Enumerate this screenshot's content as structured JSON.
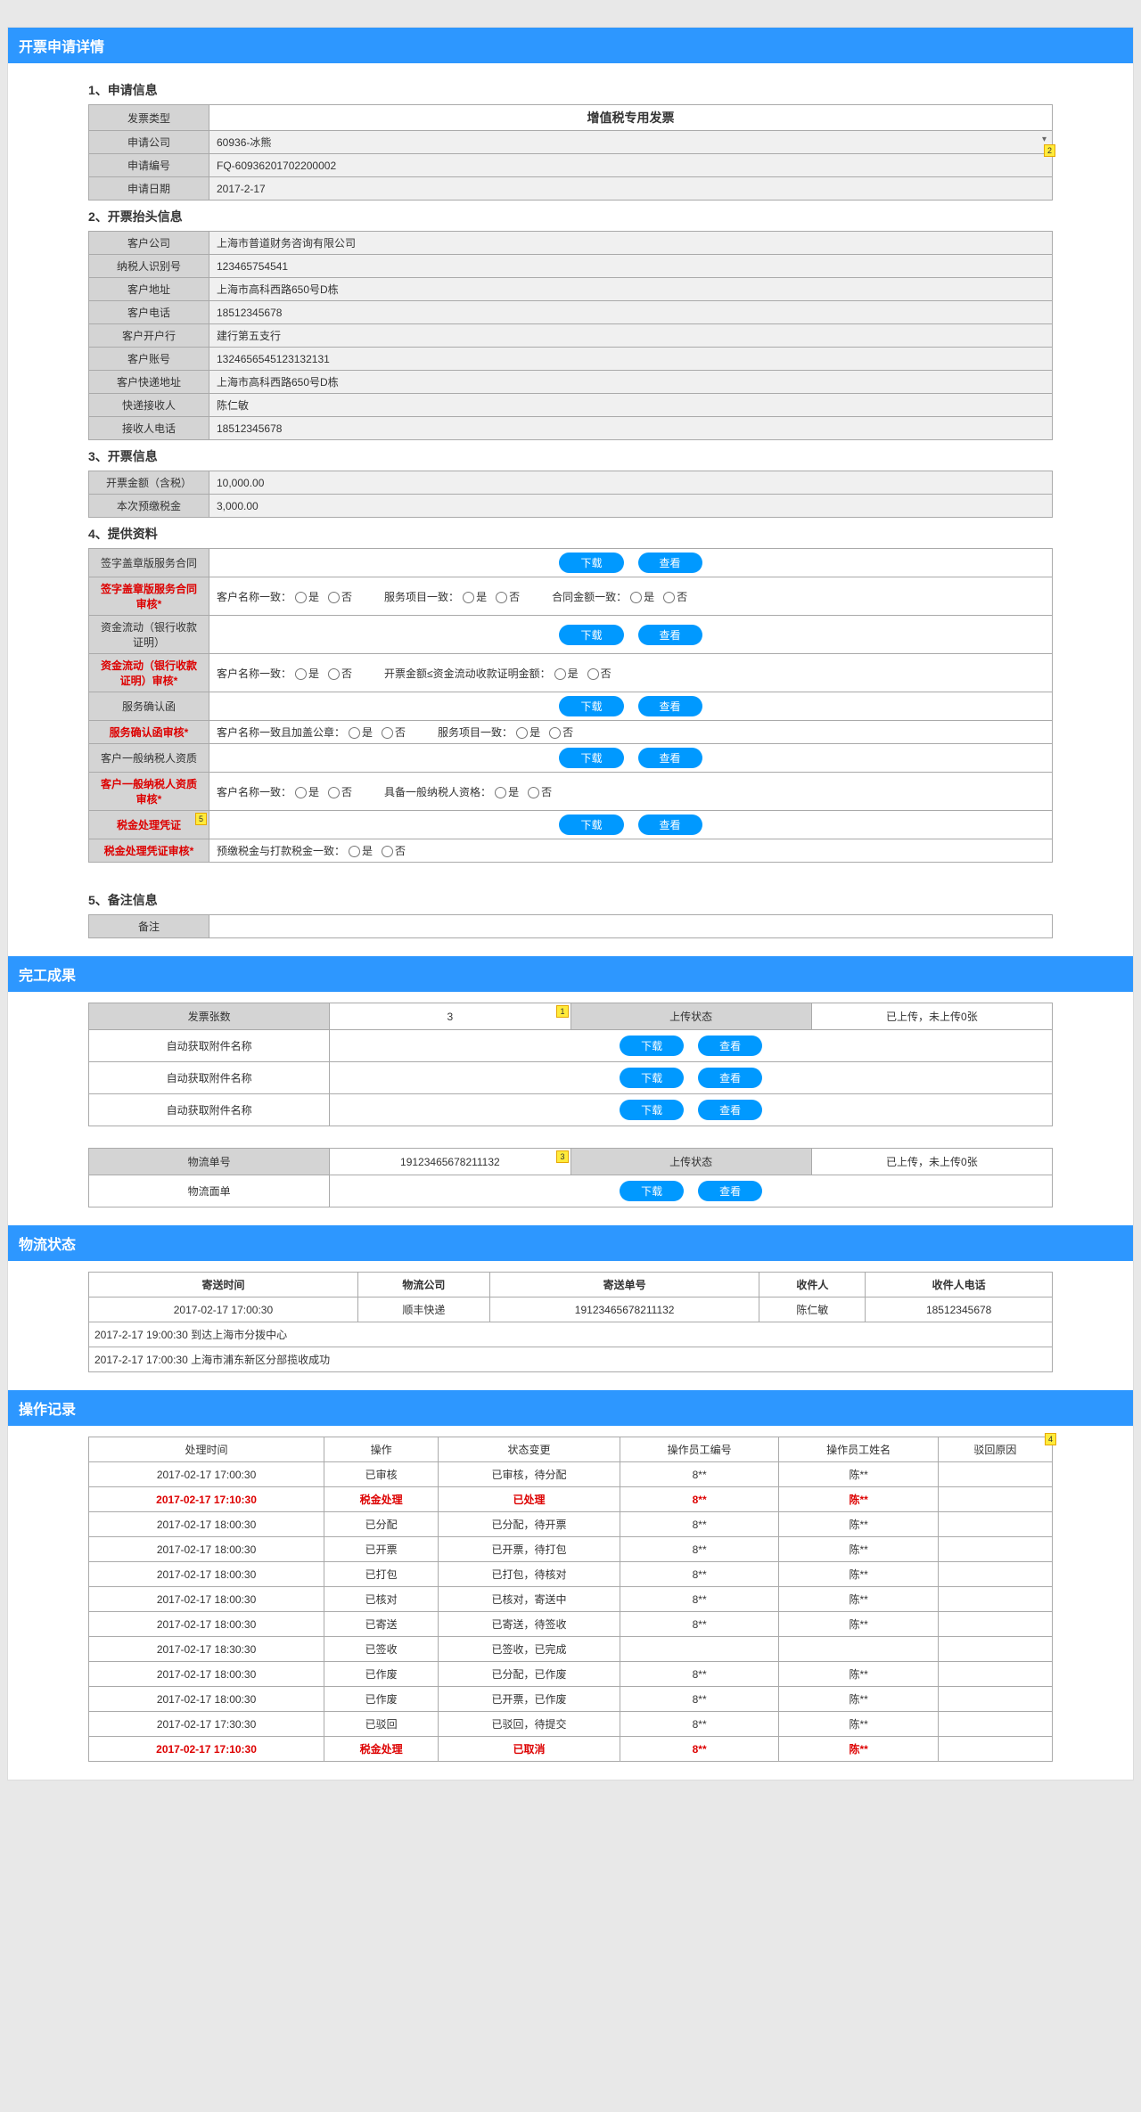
{
  "headers": {
    "detail": "开票申请详情",
    "result": "完工成果",
    "shipping": "物流状态",
    "log": "操作记录"
  },
  "s1": {
    "title": "1、申请信息",
    "rows": [
      {
        "label": "发票类型",
        "value": "增值税专用发票",
        "big": true
      },
      {
        "label": "申请公司",
        "value": "60936-冰熊",
        "dropdown": true
      },
      {
        "label": "申请编号",
        "value": "FQ-60936201702200002"
      },
      {
        "label": "申请日期",
        "value": "2017-2-17"
      }
    ]
  },
  "s2": {
    "title": "2、开票抬头信息",
    "rows": [
      {
        "label": "客户公司",
        "value": "上海市普道财务咨询有限公司"
      },
      {
        "label": "纳税人识别号",
        "value": "123465754541"
      },
      {
        "label": "客户地址",
        "value": "上海市高科西路650号D栋"
      },
      {
        "label": "客户电话",
        "value": "18512345678"
      },
      {
        "label": "客户开户行",
        "value": "建行第五支行"
      },
      {
        "label": "客户账号",
        "value": "1324656545123132131"
      },
      {
        "label": "客户快递地址",
        "value": "上海市高科西路650号D栋"
      },
      {
        "label": "快递接收人",
        "value": "陈仁敏"
      },
      {
        "label": "接收人电话",
        "value": "18512345678"
      }
    ]
  },
  "s3": {
    "title": "3、开票信息",
    "rows": [
      {
        "label": "开票金额（含税）",
        "value": "10,000.00"
      },
      {
        "label": "本次预缴税金",
        "value": "3,000.00"
      }
    ]
  },
  "s4": {
    "title": "4、提供资料",
    "btn_download": "下载",
    "btn_view": "查看",
    "yes": "是",
    "no": "否",
    "items": [
      {
        "label": "签字盖章版服务合同",
        "type": "dl"
      },
      {
        "label": "签字盖章版服务合同审核*",
        "type": "check",
        "red": true,
        "checks": [
          {
            "q": "客户名称一致："
          },
          {
            "q": "服务项目一致："
          },
          {
            "q": "合同金额一致："
          }
        ]
      },
      {
        "label": "资金流动（银行收款证明）",
        "type": "dl"
      },
      {
        "label": "资金流动（银行收款证明）审核*",
        "type": "check",
        "red": true,
        "checks": [
          {
            "q": "客户名称一致："
          },
          {
            "q": "开票金额≤资金流动收款证明金额："
          }
        ]
      },
      {
        "label": "服务确认函",
        "type": "dl"
      },
      {
        "label": "服务确认函审核*",
        "type": "check",
        "red": true,
        "checks": [
          {
            "q": "客户名称一致且加盖公章："
          },
          {
            "q": "服务项目一致："
          }
        ]
      },
      {
        "label": "客户一般纳税人资质",
        "type": "dl"
      },
      {
        "label": "客户一般纳税人资质审核*",
        "type": "check",
        "red": true,
        "checks": [
          {
            "q": "客户名称一致："
          },
          {
            "q": "具备一般纳税人资格："
          }
        ]
      },
      {
        "label": "税金处理凭证",
        "type": "dl",
        "red": true,
        "annot": "5"
      },
      {
        "label": "税金处理凭证审核*",
        "type": "check",
        "red": true,
        "checks": [
          {
            "q": "预缴税金与打款税金一致："
          }
        ]
      }
    ]
  },
  "s5": {
    "title": "5、备注信息",
    "label": "备注",
    "value": ""
  },
  "result": {
    "t1": {
      "h1": "发票张数",
      "v1": "3",
      "h2": "上传状态",
      "v2": "已上传，未上传0张",
      "rows": [
        {
          "label": "自动获取附件名称"
        },
        {
          "label": "自动获取附件名称"
        },
        {
          "label": "自动获取附件名称"
        }
      ],
      "annot": "1"
    },
    "t2": {
      "h1": "物流单号",
      "v1": "19123465678211132",
      "h2": "上传状态",
      "v2": "已上传，未上传0张",
      "rows": [
        {
          "label": "物流面单"
        }
      ],
      "annot": "3"
    }
  },
  "shipping": {
    "headers": [
      "寄送时间",
      "物流公司",
      "寄送单号",
      "收件人",
      "收件人电话"
    ],
    "row": [
      "2017-02-17  17:00:30",
      "顺丰快递",
      "19123465678211132",
      "陈仁敏",
      "18512345678"
    ],
    "events": [
      "2017-2-17  19:00:30    到达上海市分拨中心",
      "2017-2-17  17:00:30    上海市浦东新区分部揽收成功"
    ]
  },
  "log": {
    "headers": [
      "处理时间",
      "操作",
      "状态变更",
      "操作员工编号",
      "操作员工姓名",
      "驳回原因"
    ],
    "annot": "4",
    "rows": [
      {
        "c": [
          "2017-02-17  17:00:30",
          "已审核",
          "已审核，待分配",
          "8**",
          "陈**",
          ""
        ]
      },
      {
        "c": [
          "2017-02-17  17:10:30",
          "税金处理",
          "已处理",
          "8**",
          "陈**",
          ""
        ],
        "red": true
      },
      {
        "c": [
          "2017-02-17  18:00:30",
          "已分配",
          "已分配，待开票",
          "8**",
          "陈**",
          ""
        ]
      },
      {
        "c": [
          "2017-02-17  18:00:30",
          "已开票",
          "已开票，待打包",
          "8**",
          "陈**",
          ""
        ]
      },
      {
        "c": [
          "2017-02-17  18:00:30",
          "已打包",
          "已打包，待核对",
          "8**",
          "陈**",
          ""
        ]
      },
      {
        "c": [
          "2017-02-17  18:00:30",
          "已核对",
          "已核对，寄送中",
          "8**",
          "陈**",
          ""
        ]
      },
      {
        "c": [
          "2017-02-17  18:00:30",
          "已寄送",
          "已寄送，待签收",
          "8**",
          "陈**",
          ""
        ]
      },
      {
        "c": [
          "2017-02-17  18:30:30",
          "已签收",
          "已签收，已完成",
          "",
          "",
          ""
        ]
      },
      {
        "c": [
          "2017-02-17  18:00:30",
          "已作废",
          "已分配，已作废",
          "8**",
          "陈**",
          ""
        ]
      },
      {
        "c": [
          "2017-02-17  18:00:30",
          "已作废",
          "已开票，已作废",
          "8**",
          "陈**",
          ""
        ]
      },
      {
        "c": [
          "2017-02-17  17:30:30",
          "已驳回",
          "已驳回，待提交",
          "8**",
          "陈**",
          ""
        ]
      },
      {
        "c": [
          "2017-02-17  17:10:30",
          "税金处理",
          "已取消",
          "8**",
          "陈**",
          ""
        ],
        "red": true
      }
    ]
  },
  "annots": {
    "a2": "2"
  }
}
